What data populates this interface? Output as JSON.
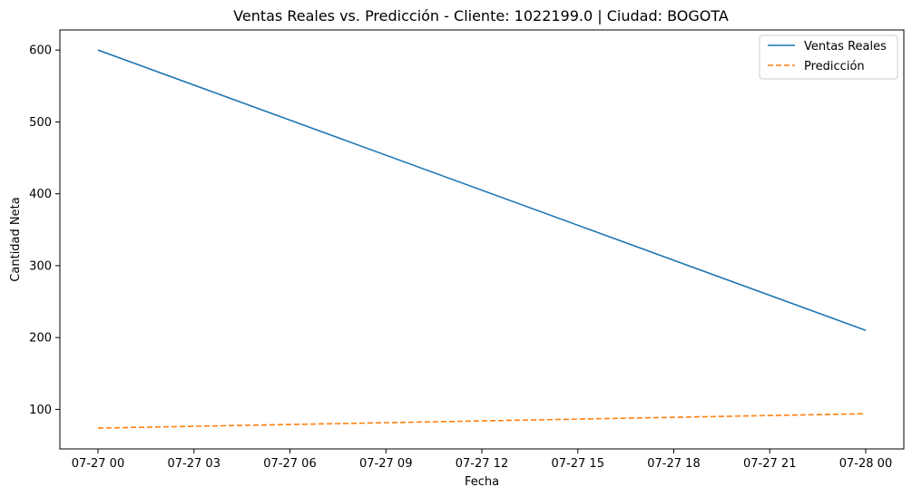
{
  "chart_data": {
    "type": "line",
    "title": "Ventas Reales vs. Predicción - Cliente: 1022199.0 | Ciudad: BOGOTA",
    "xlabel": "Fecha",
    "ylabel": "Cantidad Neta",
    "x_tick_labels": [
      "07-27 00",
      "07-27 03",
      "07-27 06",
      "07-27 09",
      "07-27 12",
      "07-27 15",
      "07-27 18",
      "07-27 21",
      "07-28 00"
    ],
    "y_ticks": [
      100,
      200,
      300,
      400,
      500,
      600
    ],
    "ylim": [
      45,
      628
    ],
    "x": [
      "07-27 00",
      "07-28 00"
    ],
    "series": [
      {
        "name": "Ventas Reales",
        "values": [
          600,
          210
        ],
        "color": "#1f77b4",
        "style": "solid"
      },
      {
        "name": "Predicción",
        "values": [
          74,
          94
        ],
        "color": "#ff7f0e",
        "style": "dashed"
      }
    ],
    "grid": false,
    "legend_position": "top-right"
  }
}
